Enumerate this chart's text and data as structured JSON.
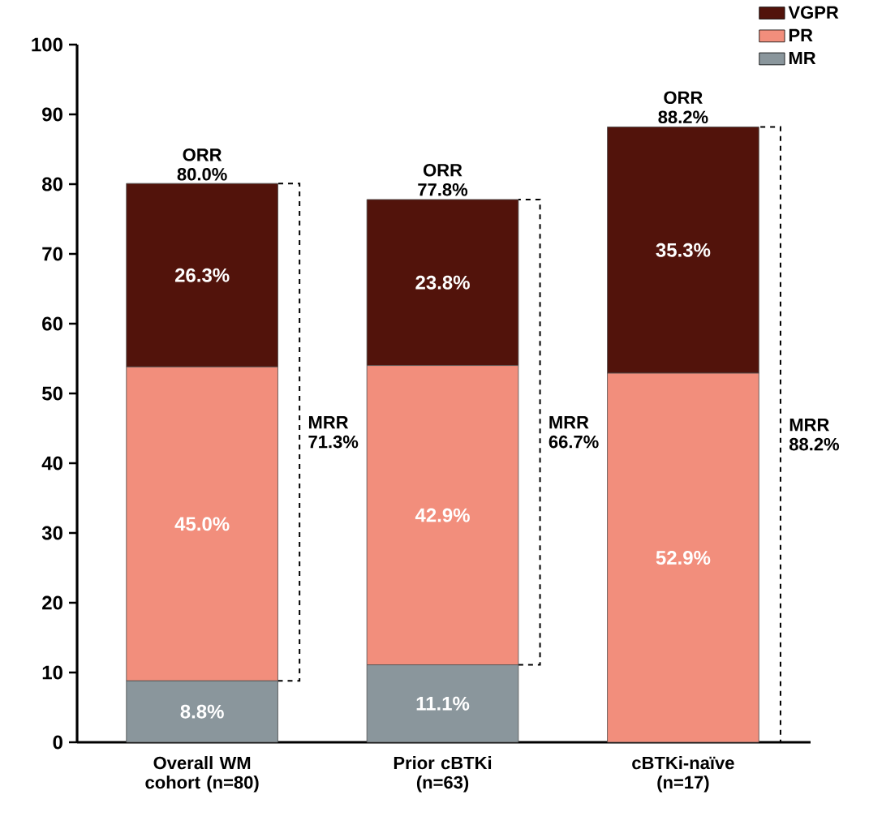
{
  "chart_data": {
    "type": "bar",
    "stacked": true,
    "categories": [
      "Overall WM cohort (n=80)",
      "Prior cBTKi (n=63)",
      "cBTKi-naïve (n=17)"
    ],
    "series": [
      {
        "name": "MR",
        "color": "#8a969c",
        "values": [
          8.8,
          11.1,
          null
        ],
        "value_labels": [
          "8.8%",
          "11.1%",
          null
        ]
      },
      {
        "name": "PR",
        "color": "#f28e7c",
        "values": [
          45.0,
          42.9,
          52.9
        ],
        "value_labels": [
          "45.0%",
          "42.9%",
          "52.9%"
        ]
      },
      {
        "name": "VGPR",
        "color": "#52130b",
        "values": [
          26.3,
          23.8,
          35.3
        ],
        "value_labels": [
          "26.3%",
          "23.8%",
          "35.3%"
        ]
      }
    ],
    "ylim": [
      0,
      100
    ],
    "yticks": [
      0,
      10,
      20,
      30,
      40,
      50,
      60,
      70,
      80,
      90,
      100
    ],
    "grid": false,
    "legend": "top right",
    "annotations": [
      {
        "text": "ORR 80.0%",
        "x": "Overall WM cohort (n=80)",
        "y": 80.0
      },
      {
        "text": "ORR 77.8%",
        "x": "Prior cBTKi (n=63)",
        "y": 77.8
      },
      {
        "text": "ORR 88.2%",
        "x": "cBTKi-naïve (n=17)",
        "y": 88.2
      },
      "MRR 71.3%",
      "MRR 66.7%",
      "MRR 88.2%"
    ]
  }
}
